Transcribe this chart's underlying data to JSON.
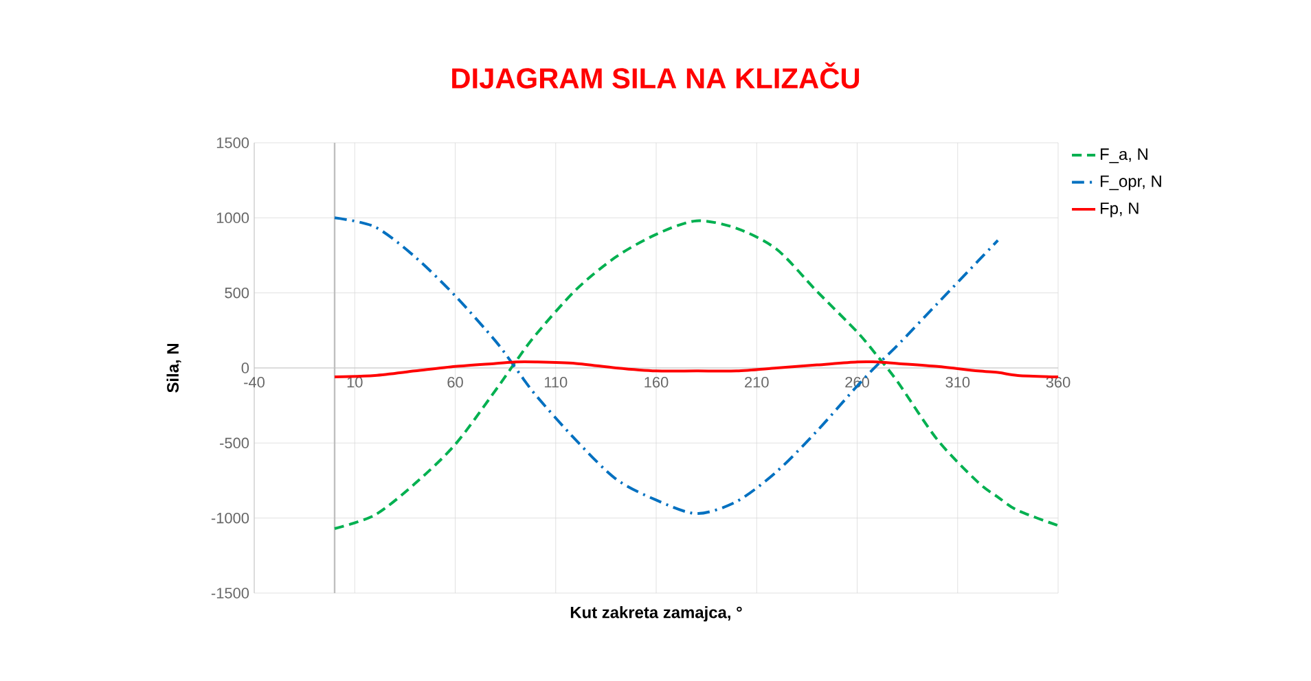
{
  "chart_data": {
    "type": "line",
    "title": "DIJAGRAM SILA NA KLIZAČU",
    "xlabel": "Kut zakreta zamajca, °",
    "ylabel": "Sila, N",
    "x": [
      0,
      20,
      40,
      60,
      80,
      90,
      100,
      120,
      140,
      160,
      180,
      200,
      220,
      240,
      260,
      270,
      280,
      300,
      320,
      330,
      340,
      360
    ],
    "series": [
      {
        "name": "F_a, N",
        "color": "#00b050",
        "line_style": "dashed",
        "values": [
          -1070,
          -980,
          -770,
          -510,
          -150,
          40,
          220,
          520,
          740,
          890,
          980,
          930,
          790,
          510,
          240,
          80,
          -90,
          -480,
          -760,
          -860,
          -950,
          -1050
        ]
      },
      {
        "name": "F_opr, N",
        "color": "#0070c0",
        "line_style": "dashdot",
        "values": [
          1000,
          940,
          740,
          480,
          180,
          0,
          -180,
          -480,
          -740,
          -880,
          -970,
          -890,
          -690,
          -420,
          -120,
          20,
          150,
          430,
          710,
          850,
          null,
          null
        ]
      },
      {
        "name": "Fp, N",
        "color": "#ff0000",
        "line_style": "solid",
        "values": [
          -60,
          -50,
          -20,
          10,
          30,
          40,
          40,
          30,
          0,
          -20,
          -20,
          -20,
          0,
          20,
          40,
          40,
          30,
          10,
          -20,
          -30,
          -50,
          -60
        ]
      }
    ],
    "xlim": [
      -40,
      360
    ],
    "xticks": [
      -40,
      10,
      60,
      110,
      160,
      210,
      260,
      310,
      360
    ],
    "ylim": [
      -1500,
      1500
    ],
    "yticks": [
      -1500,
      -1000,
      -500,
      0,
      500,
      1000,
      1500
    ],
    "grid": true,
    "legend": "top right",
    "marker": "none",
    "ref_lines": [
      {
        "axis": "x",
        "value": 0,
        "color": "#bfbfbf"
      }
    ]
  }
}
